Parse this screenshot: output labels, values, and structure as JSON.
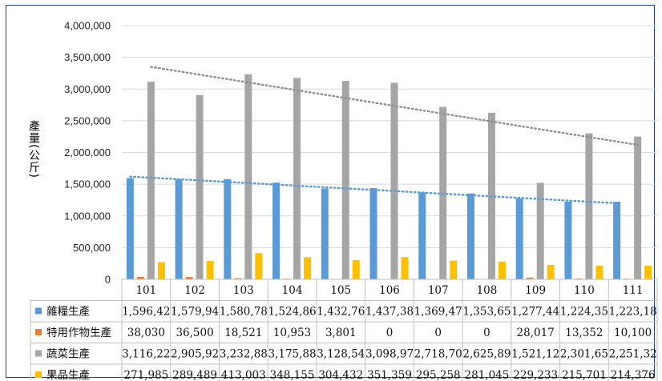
{
  "chart_data": {
    "type": "bar",
    "ylabel": "產量(公斤)",
    "ylim": [
      0,
      4000000
    ],
    "yticks": [
      "0",
      "500,000",
      "1,000,000",
      "1,500,000",
      "2,000,000",
      "2,500,000",
      "3,000,000",
      "3,500,000",
      "4,000,000"
    ],
    "grid": true,
    "legend": "table-below",
    "categories": [
      "101",
      "102",
      "103",
      "104",
      "105",
      "106",
      "107",
      "108",
      "109",
      "110",
      "111"
    ],
    "series": [
      {
        "name": "雜糧生產",
        "color": "#5b9bd5",
        "values": [
          1596420,
          1579940,
          1580780,
          1524860,
          1432760,
          1437380,
          1369470,
          1353650,
          1277440,
          1224350,
          1223180
        ],
        "labels": [
          "1,596,42",
          "1,579,94",
          "1,580,78",
          "1,524,86",
          "1,432,76",
          "1,437,38",
          "1,369,47",
          "1,353,65",
          "1,277,44",
          "1,224,35",
          "1,223,18"
        ],
        "trendline": {
          "style": "dotted",
          "color": "#5b9bd5",
          "from": 1620000,
          "to": 1200000
        }
      },
      {
        "name": "特用作物生產",
        "color": "#ed7d31",
        "values": [
          38030,
          36500,
          18521,
          10953,
          3801,
          0,
          0,
          0,
          28017,
          13352,
          10100
        ],
        "labels": [
          "38,030",
          "36,500",
          "18,521",
          "10,953",
          "3,801",
          "0",
          "0",
          "0",
          "28,017",
          "13,352",
          "10,100"
        ]
      },
      {
        "name": "蔬菜生產",
        "color": "#a5a5a5",
        "values": [
          3116220,
          2905920,
          3232880,
          3175880,
          3128540,
          3098970,
          2718700,
          2625890,
          1521120,
          2301650,
          2251320
        ],
        "labels": [
          "3,116,22",
          "2,905,92",
          "3,232,88",
          "3,175,88",
          "3,128,54",
          "3,098,97",
          "2,718,70",
          "2,625,89",
          "1,521,12",
          "2,301,65",
          "2,251,32"
        ],
        "trendline": {
          "style": "dotted",
          "color": "#909090",
          "from": 3350000,
          "to": 2120000
        }
      },
      {
        "name": "果品生產",
        "color": "#ffc000",
        "values": [
          271985,
          289489,
          413003,
          348155,
          304432,
          351359,
          295258,
          281045,
          229233,
          215701,
          214376
        ],
        "labels": [
          "271,985",
          "289,489",
          "413,003",
          "348,155",
          "304,432",
          "351,359",
          "295,258",
          "281,045",
          "229,233",
          "215,701",
          "214,376"
        ]
      }
    ]
  }
}
